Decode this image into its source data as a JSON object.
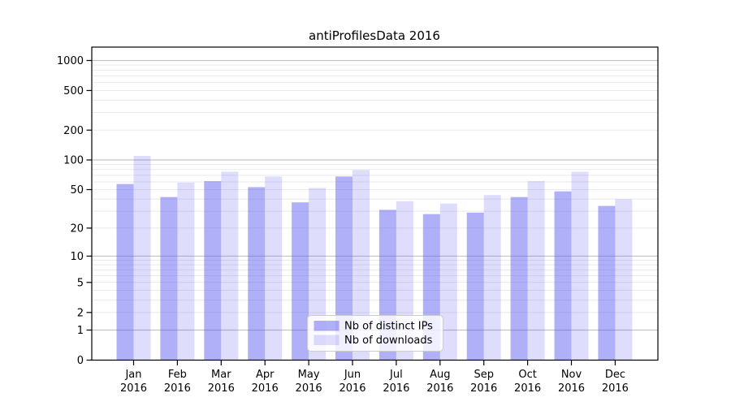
{
  "chart_data": {
    "type": "bar",
    "title": "antiProfilesData 2016",
    "categories": [
      "Jan",
      "Feb",
      "Mar",
      "Apr",
      "May",
      "Jun",
      "Jul",
      "Aug",
      "Sep",
      "Oct",
      "Nov",
      "Dec"
    ],
    "year_label": "2016",
    "series": [
      {
        "name": "Nb of distinct IPs",
        "color_hex": "#a6a6f8",
        "fill": "rgba(88,88,240,0.47)",
        "values": [
          57,
          42,
          61,
          53,
          37,
          68,
          31,
          28,
          29,
          42,
          48,
          34
        ]
      },
      {
        "name": "Nb of downloads",
        "color_hex": "#d9d9fb",
        "fill": "rgba(88,88,240,0.20)",
        "values": [
          110,
          59,
          76,
          68,
          52,
          79,
          38,
          36,
          44,
          61,
          76,
          40
        ]
      }
    ],
    "yscale": "log1p",
    "ytick_values": [
      0,
      1,
      2,
      5,
      10,
      20,
      50,
      100,
      200,
      500,
      1000
    ],
    "ytick_labels": [
      "0",
      "1",
      "2",
      "5",
      "10",
      "20",
      "50",
      "100",
      "200",
      "500",
      "1000"
    ],
    "ylim": [
      0,
      1370
    ],
    "xlabel": "",
    "ylabel": "",
    "grid": {
      "axis": "y",
      "major_color": "#c3c3c3",
      "minor_color": "#e9e9e9"
    },
    "legend": {
      "position": "lower center",
      "background": "rgba(255,255,255,0.8)",
      "border_color": "#cccccc"
    },
    "spine_color": "#000000"
  }
}
